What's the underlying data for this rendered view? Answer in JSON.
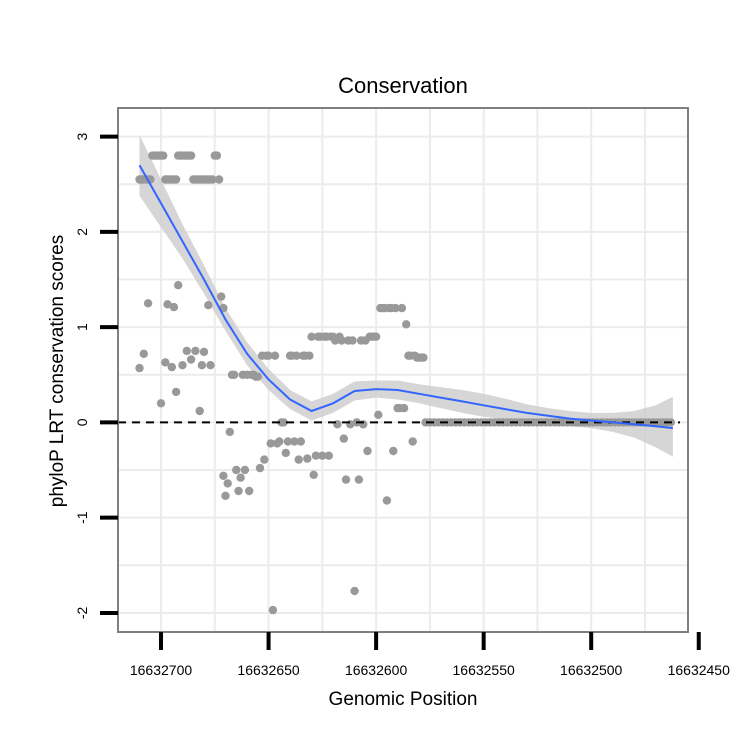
{
  "chart_data": {
    "type": "scatter",
    "title": "Conservation",
    "xlabel": "Genomic Position",
    "ylabel": "phyloP LRT conservation scores",
    "x_reversed": true,
    "xlim": [
      16632720,
      16632455
    ],
    "ylim": [
      -2.2,
      3.3
    ],
    "x_ticks": [
      16632700,
      16632650,
      16632600,
      16632550,
      16632500,
      16632450
    ],
    "x_tick_labels": [
      "16632700",
      "16632650",
      "16632600",
      "16632550",
      "16632500",
      "16632450"
    ],
    "y_ticks": [
      -2,
      -1,
      0,
      1,
      2,
      3
    ],
    "y_tick_labels": [
      "-2",
      "-1",
      "0",
      "1",
      "2",
      "3"
    ],
    "reference_line": {
      "y": 0,
      "style": "dashed"
    },
    "colors": {
      "points": "#999999",
      "smooth": "#3366ff",
      "ribbon": "#cfcfcf",
      "grid": "#ececec",
      "frame": "#7f7f7f",
      "refline": "#000000"
    },
    "points": [
      [
        16632710,
        2.55
      ],
      [
        16632709,
        2.55
      ],
      [
        16632708,
        2.55
      ],
      [
        16632707,
        2.55
      ],
      [
        16632706,
        2.55
      ],
      [
        16632705,
        2.55
      ],
      [
        16632704,
        2.8
      ],
      [
        16632703,
        2.8
      ],
      [
        16632702,
        2.8
      ],
      [
        16632701,
        2.8
      ],
      [
        16632700,
        2.8
      ],
      [
        16632699,
        2.8
      ],
      [
        16632698,
        2.55
      ],
      [
        16632697,
        2.55
      ],
      [
        16632696,
        2.55
      ],
      [
        16632695,
        2.55
      ],
      [
        16632694,
        2.55
      ],
      [
        16632693,
        2.55
      ],
      [
        16632692,
        2.8
      ],
      [
        16632691,
        2.8
      ],
      [
        16632690,
        2.8
      ],
      [
        16632689,
        2.8
      ],
      [
        16632688,
        2.8
      ],
      [
        16632687,
        2.8
      ],
      [
        16632686,
        2.8
      ],
      [
        16632685,
        2.55
      ],
      [
        16632684,
        2.55
      ],
      [
        16632683,
        2.55
      ],
      [
        16632682,
        2.55
      ],
      [
        16632681,
        2.55
      ],
      [
        16632680,
        2.55
      ],
      [
        16632679,
        2.55
      ],
      [
        16632678,
        2.55
      ],
      [
        16632677,
        2.55
      ],
      [
        16632676,
        2.55
      ],
      [
        16632675,
        2.8
      ],
      [
        16632674,
        2.8
      ],
      [
        16632673,
        2.55
      ],
      [
        16632710,
        0.57
      ],
      [
        16632708,
        0.72
      ],
      [
        16632706,
        1.25
      ],
      [
        16632700,
        0.2
      ],
      [
        16632698,
        0.63
      ],
      [
        16632697,
        1.24
      ],
      [
        16632695,
        0.58
      ],
      [
        16632694,
        1.21
      ],
      [
        16632693,
        0.32
      ],
      [
        16632692,
        1.44
      ],
      [
        16632690,
        0.6
      ],
      [
        16632688,
        0.75
      ],
      [
        16632686,
        0.66
      ],
      [
        16632684,
        0.75
      ],
      [
        16632682,
        0.12
      ],
      [
        16632681,
        0.6
      ],
      [
        16632680,
        0.74
      ],
      [
        16632678,
        1.23
      ],
      [
        16632677,
        0.6
      ],
      [
        16632672,
        1.32
      ],
      [
        16632671,
        1.2
      ],
      [
        16632671,
        -0.56
      ],
      [
        16632670,
        -0.77
      ],
      [
        16632669,
        -0.64
      ],
      [
        16632668,
        -0.1
      ],
      [
        16632667,
        0.5
      ],
      [
        16632666,
        0.5
      ],
      [
        16632665,
        -0.5
      ],
      [
        16632664,
        -0.72
      ],
      [
        16632663,
        -0.58
      ],
      [
        16632662,
        0.5
      ],
      [
        16632661,
        -0.5
      ],
      [
        16632660,
        0.5
      ],
      [
        16632659,
        -0.72
      ],
      [
        16632658,
        0.5
      ],
      [
        16632657,
        0.5
      ],
      [
        16632656,
        0.48
      ],
      [
        16632655,
        0.48
      ],
      [
        16632654,
        -0.48
      ],
      [
        16632653,
        0.7
      ],
      [
        16632652,
        -0.39
      ],
      [
        16632651,
        0.7
      ],
      [
        16632650,
        0.7
      ],
      [
        16632649,
        -0.22
      ],
      [
        16632648,
        -1.97
      ],
      [
        16632647,
        0.7
      ],
      [
        16632646,
        -0.22
      ],
      [
        16632645,
        -0.2
      ],
      [
        16632644,
        0.0
      ],
      [
        16632643,
        0.0
      ],
      [
        16632642,
        -0.32
      ],
      [
        16632641,
        -0.2
      ],
      [
        16632640,
        0.7
      ],
      [
        16632639,
        0.7
      ],
      [
        16632638,
        -0.2
      ],
      [
        16632637,
        0.7
      ],
      [
        16632636,
        -0.39
      ],
      [
        16632635,
        -0.2
      ],
      [
        16632634,
        0.7
      ],
      [
        16632633,
        0.7
      ],
      [
        16632632,
        -0.38
      ],
      [
        16632631,
        0.7
      ],
      [
        16632630,
        0.9
      ],
      [
        16632629,
        -0.55
      ],
      [
        16632628,
        -0.35
      ],
      [
        16632627,
        0.9
      ],
      [
        16632626,
        0.9
      ],
      [
        16632625,
        -0.35
      ],
      [
        16632624,
        0.9
      ],
      [
        16632623,
        0.9
      ],
      [
        16632622,
        -0.35
      ],
      [
        16632621,
        0.9
      ],
      [
        16632620,
        0.9
      ],
      [
        16632619,
        0.86
      ],
      [
        16632618,
        -0.02
      ],
      [
        16632617,
        0.9
      ],
      [
        16632616,
        0.86
      ],
      [
        16632615,
        -0.17
      ],
      [
        16632614,
        -0.6
      ],
      [
        16632613,
        0.86
      ],
      [
        16632612,
        -0.02
      ],
      [
        16632611,
        0.86
      ],
      [
        16632610,
        -1.77
      ],
      [
        16632609,
        0.0
      ],
      [
        16632608,
        -0.6
      ],
      [
        16632607,
        0.86
      ],
      [
        16632606,
        -0.02
      ],
      [
        16632605,
        0.86
      ],
      [
        16632604,
        -0.3
      ],
      [
        16632603,
        0.9
      ],
      [
        16632602,
        0.9
      ],
      [
        16632601,
        0.9
      ],
      [
        16632600,
        0.9
      ],
      [
        16632599,
        0.08
      ],
      [
        16632598,
        1.2
      ],
      [
        16632597,
        1.2
      ],
      [
        16632596,
        1.2
      ],
      [
        16632595,
        -0.82
      ],
      [
        16632594,
        1.2
      ],
      [
        16632593,
        1.2
      ],
      [
        16632592,
        -0.3
      ],
      [
        16632591,
        1.2
      ],
      [
        16632590,
        0.15
      ],
      [
        16632589,
        0.15
      ],
      [
        16632588,
        1.2
      ],
      [
        16632587,
        0.15
      ],
      [
        16632586,
        1.03
      ],
      [
        16632585,
        0.7
      ],
      [
        16632584,
        0.7
      ],
      [
        16632583,
        -0.2
      ],
      [
        16632582,
        0.7
      ],
      [
        16632581,
        0.68
      ],
      [
        16632580,
        0.68
      ],
      [
        16632579,
        0.68
      ],
      [
        16632578,
        0.68
      ],
      [
        16632577,
        0
      ],
      [
        16632575,
        0
      ],
      [
        16632573,
        0
      ],
      [
        16632571,
        0
      ],
      [
        16632569,
        0
      ],
      [
        16632567,
        0
      ],
      [
        16632565,
        0
      ],
      [
        16632563,
        0
      ],
      [
        16632561,
        0
      ],
      [
        16632559,
        0
      ],
      [
        16632557,
        0
      ],
      [
        16632555,
        0
      ],
      [
        16632553,
        0
      ],
      [
        16632551,
        0
      ],
      [
        16632549,
        0
      ],
      [
        16632547,
        0
      ],
      [
        16632545,
        0
      ],
      [
        16632543,
        0
      ],
      [
        16632541,
        0
      ],
      [
        16632539,
        0
      ],
      [
        16632537,
        0
      ],
      [
        16632535,
        0
      ],
      [
        16632533,
        0
      ],
      [
        16632531,
        0
      ],
      [
        16632529,
        0
      ],
      [
        16632527,
        0
      ],
      [
        16632525,
        0
      ],
      [
        16632523,
        0
      ],
      [
        16632521,
        0
      ],
      [
        16632519,
        0
      ],
      [
        16632517,
        0
      ],
      [
        16632515,
        0
      ],
      [
        16632513,
        0
      ],
      [
        16632511,
        0
      ],
      [
        16632509,
        0
      ],
      [
        16632507,
        0
      ],
      [
        16632505,
        0
      ],
      [
        16632503,
        0
      ],
      [
        16632501,
        0
      ],
      [
        16632499,
        0
      ],
      [
        16632497,
        0
      ],
      [
        16632495,
        0
      ],
      [
        16632493,
        0
      ],
      [
        16632491,
        0
      ],
      [
        16632489,
        0
      ],
      [
        16632487,
        0
      ],
      [
        16632485,
        0
      ],
      [
        16632483,
        0
      ],
      [
        16632481,
        0
      ],
      [
        16632479,
        0
      ],
      [
        16632477,
        0
      ],
      [
        16632475,
        0
      ],
      [
        16632473,
        0
      ],
      [
        16632471,
        0
      ],
      [
        16632469,
        0
      ],
      [
        16632467,
        0
      ],
      [
        16632465,
        0
      ],
      [
        16632463,
        0
      ]
    ],
    "smooth": {
      "x": [
        16632710,
        16632700,
        16632690,
        16632680,
        16632670,
        16632660,
        16632650,
        16632640,
        16632630,
        16632620,
        16632610,
        16632600,
        16632590,
        16632580,
        16632570,
        16632560,
        16632550,
        16632540,
        16632530,
        16632520,
        16632510,
        16632500,
        16632490,
        16632480,
        16632470,
        16632462
      ],
      "y": [
        2.7,
        2.3,
        1.9,
        1.5,
        1.08,
        0.72,
        0.45,
        0.24,
        0.12,
        0.2,
        0.33,
        0.35,
        0.34,
        0.3,
        0.26,
        0.22,
        0.18,
        0.14,
        0.1,
        0.07,
        0.04,
        0.02,
        0.0,
        -0.02,
        -0.04,
        -0.06
      ],
      "lower": [
        2.38,
        2.05,
        1.72,
        1.35,
        0.96,
        0.6,
        0.34,
        0.14,
        0.02,
        0.1,
        0.23,
        0.26,
        0.24,
        0.2,
        0.15,
        0.1,
        0.06,
        0.03,
        0.01,
        -0.02,
        -0.04,
        -0.06,
        -0.1,
        -0.16,
        -0.26,
        -0.36
      ],
      "upper": [
        3.02,
        2.55,
        2.08,
        1.65,
        1.2,
        0.84,
        0.56,
        0.34,
        0.22,
        0.3,
        0.43,
        0.44,
        0.44,
        0.4,
        0.37,
        0.34,
        0.3,
        0.25,
        0.19,
        0.15,
        0.12,
        0.1,
        0.1,
        0.12,
        0.18,
        0.27
      ]
    }
  }
}
